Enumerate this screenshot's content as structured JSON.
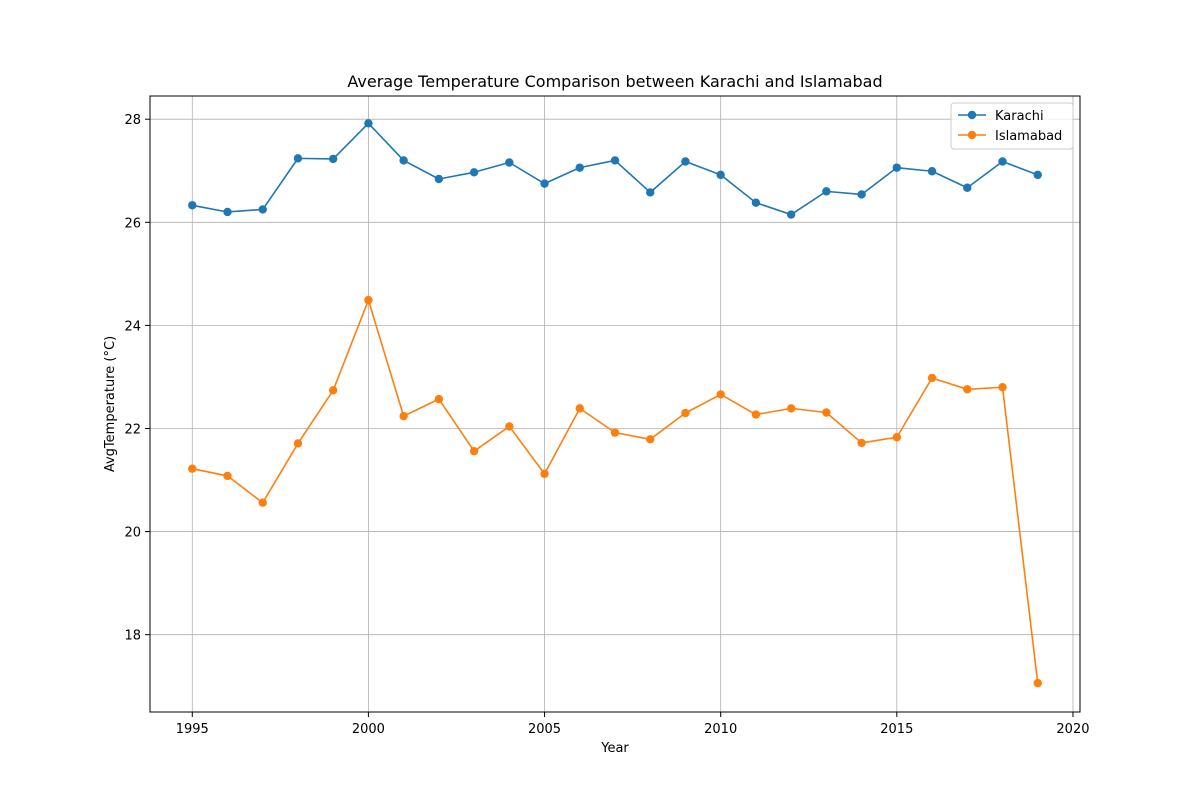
{
  "chart_data": {
    "type": "line",
    "title": "Average Temperature Comparison between Karachi and Islamabad",
    "xlabel": "Year",
    "ylabel": "AvgTemperature (°C)",
    "xlim": [
      1993.8,
      2020.2
    ],
    "ylim": [
      16.5,
      28.45
    ],
    "x_ticks": [
      1995,
      2000,
      2005,
      2010,
      2015,
      2020
    ],
    "y_ticks": [
      18,
      20,
      22,
      24,
      26,
      28
    ],
    "grid": true,
    "legend_position": "top-right",
    "x": [
      1995,
      1996,
      1997,
      1998,
      1999,
      2000,
      2001,
      2002,
      2003,
      2004,
      2005,
      2006,
      2007,
      2008,
      2009,
      2010,
      2011,
      2012,
      2013,
      2014,
      2015,
      2016,
      2017,
      2018,
      2019
    ],
    "series": [
      {
        "name": "Karachi",
        "color": "#1f77b4",
        "values": [
          26.33,
          26.2,
          26.25,
          27.24,
          27.23,
          27.92,
          27.2,
          26.84,
          26.97,
          27.16,
          26.75,
          27.06,
          27.2,
          26.58,
          27.18,
          26.92,
          26.38,
          26.15,
          26.6,
          26.54,
          27.06,
          26.99,
          26.67,
          27.18,
          26.92
        ]
      },
      {
        "name": "Islamabad",
        "color": "#ff7f0e",
        "values": [
          21.22,
          21.08,
          20.56,
          21.71,
          22.74,
          24.49,
          22.24,
          22.57,
          21.56,
          22.04,
          21.12,
          22.39,
          21.92,
          21.79,
          22.3,
          22.66,
          22.27,
          22.39,
          22.31,
          21.72,
          21.83,
          22.98,
          22.76,
          22.8,
          17.06
        ]
      }
    ]
  }
}
